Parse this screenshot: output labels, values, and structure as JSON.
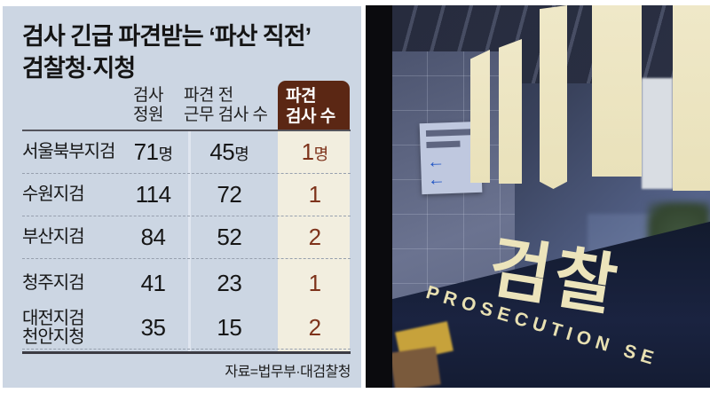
{
  "panel": {
    "title_line1": "검사 긴급 파견받는 ‘파산 직전’",
    "title_line2": "검찰청·지청",
    "table": {
      "header_quota": "검사\n정원",
      "header_before": "파견 전\n근무 검사 수",
      "header_dispatched": "파견\n검사 수",
      "rows": [
        {
          "label": "서울북부지검",
          "label2": "",
          "quota": "71",
          "quota_unit": "명",
          "before": "45",
          "before_unit": "명",
          "dispatched": "1",
          "dispatched_unit": "명"
        },
        {
          "label": "수원지검",
          "label2": "",
          "quota": "114",
          "quota_unit": "",
          "before": "72",
          "before_unit": "",
          "dispatched": "1",
          "dispatched_unit": ""
        },
        {
          "label": "부산지검",
          "label2": "",
          "quota": "84",
          "quota_unit": "",
          "before": "52",
          "before_unit": "",
          "dispatched": "2",
          "dispatched_unit": ""
        },
        {
          "label": "청주지검",
          "label2": "",
          "quota": "41",
          "quota_unit": "",
          "before": "23",
          "before_unit": "",
          "dispatched": "1",
          "dispatched_unit": ""
        },
        {
          "label": "대전지검",
          "label2": "천안지청",
          "quota": "35",
          "quota_unit": "",
          "before": "15",
          "before_unit": "",
          "dispatched": "2",
          "dispatched_unit": ""
        }
      ]
    },
    "source": "자료=법무부·대검찰청"
  },
  "photo": {
    "korean_sign": "검찰",
    "english_sign": "PROSECUTION SE",
    "arrows": "← ←"
  },
  "colors": {
    "panel_bg": "#ccd6e3",
    "highlight_box": "#5b2714",
    "highlight_col_bg": "#f2eedf",
    "highlight_number": "#7e331b",
    "logo_cream": "#ece4bb"
  },
  "chart_data": {
    "type": "table",
    "title": "검사 긴급 파견받는 ‘파산 직전’ 검찰청·지청",
    "columns": [
      "검찰청·지청",
      "검사 정원",
      "파견 전 근무 검사 수",
      "파견 검사 수"
    ],
    "rows": [
      [
        "서울북부지검",
        71,
        45,
        1
      ],
      [
        "수원지검",
        114,
        72,
        1
      ],
      [
        "부산지검",
        84,
        52,
        2
      ],
      [
        "청주지검",
        41,
        23,
        1
      ],
      [
        "대전지검 천안지청",
        35,
        15,
        2
      ]
    ],
    "unit": "명",
    "source": "자료=법무부·대검찰청"
  }
}
